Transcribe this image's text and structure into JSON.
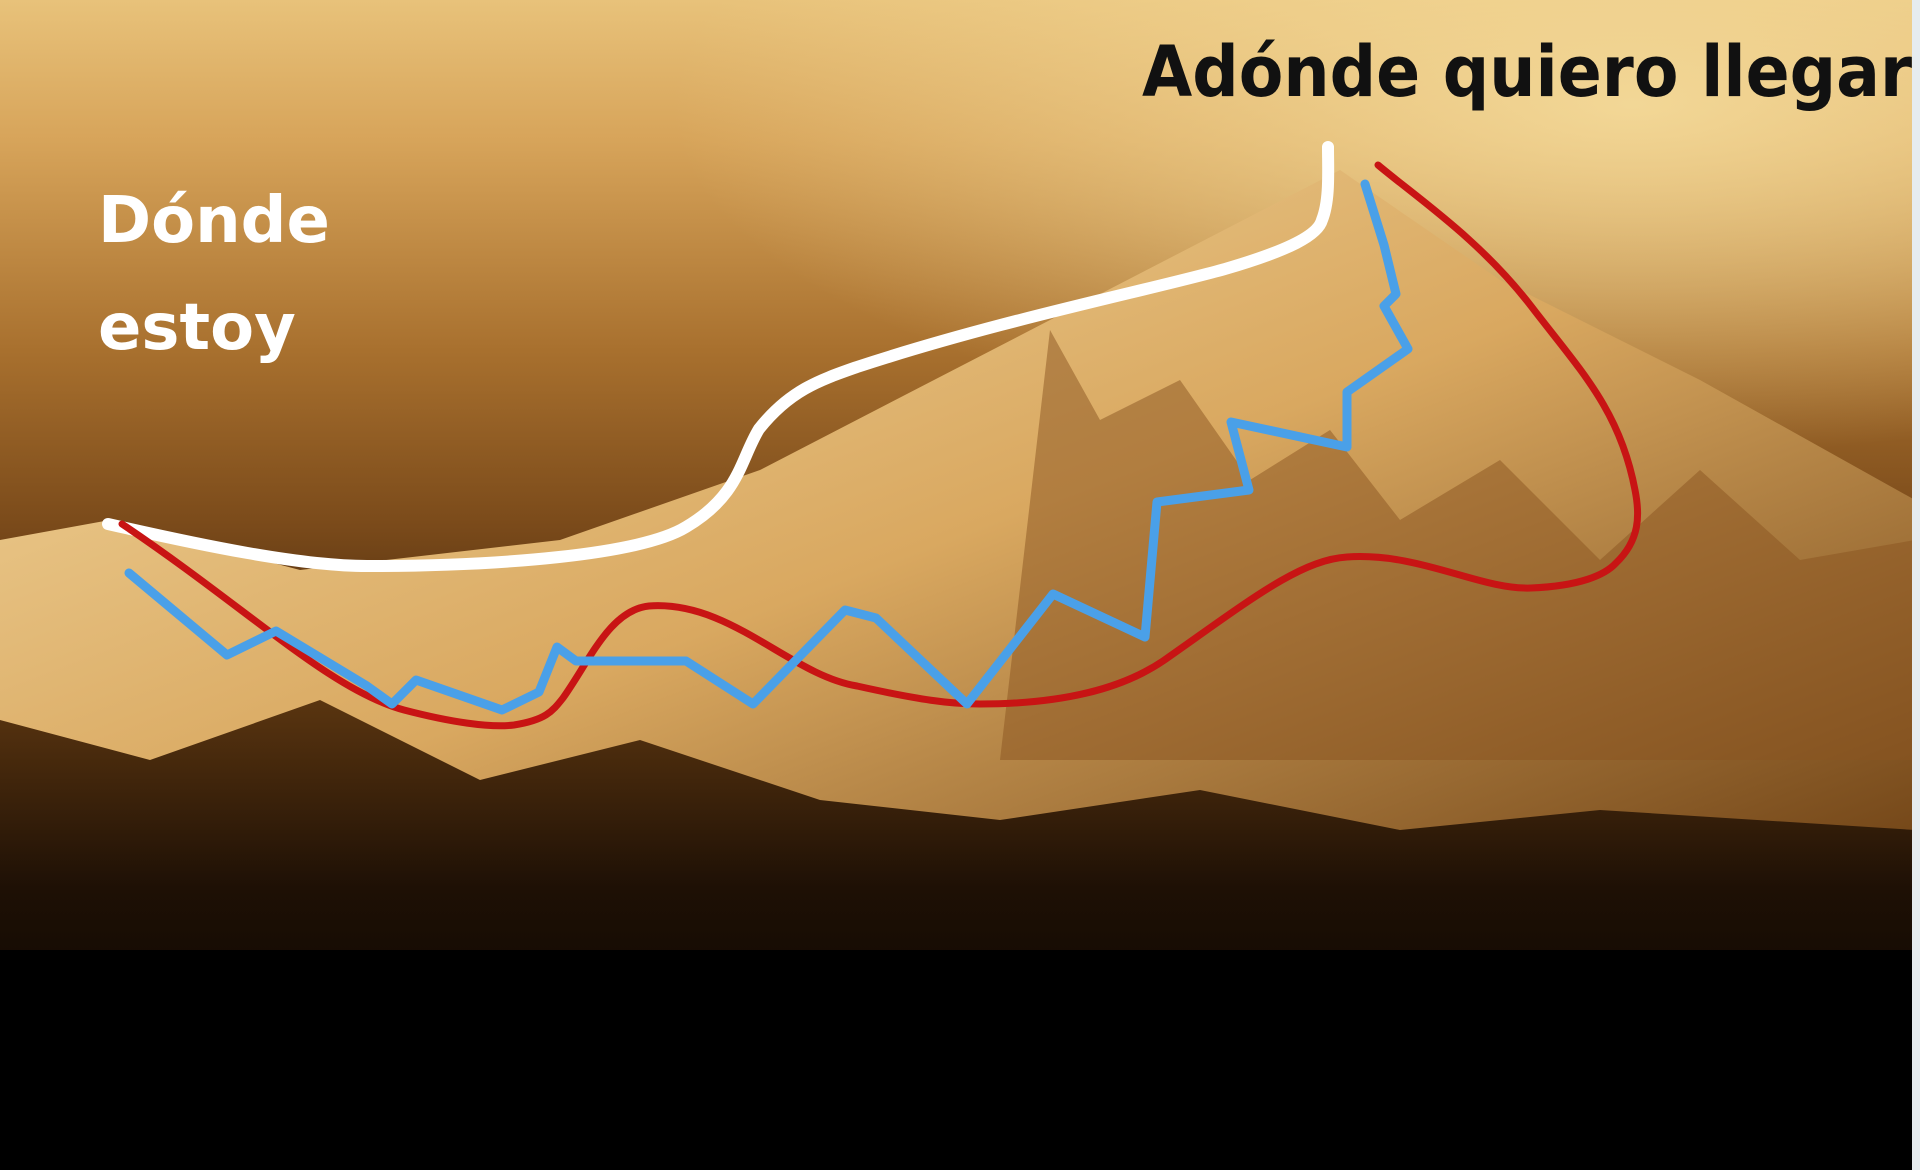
{
  "labels": {
    "start": [
      "Dónde",
      "estoy"
    ],
    "goal": "Adónde quiero llegar"
  }
}
